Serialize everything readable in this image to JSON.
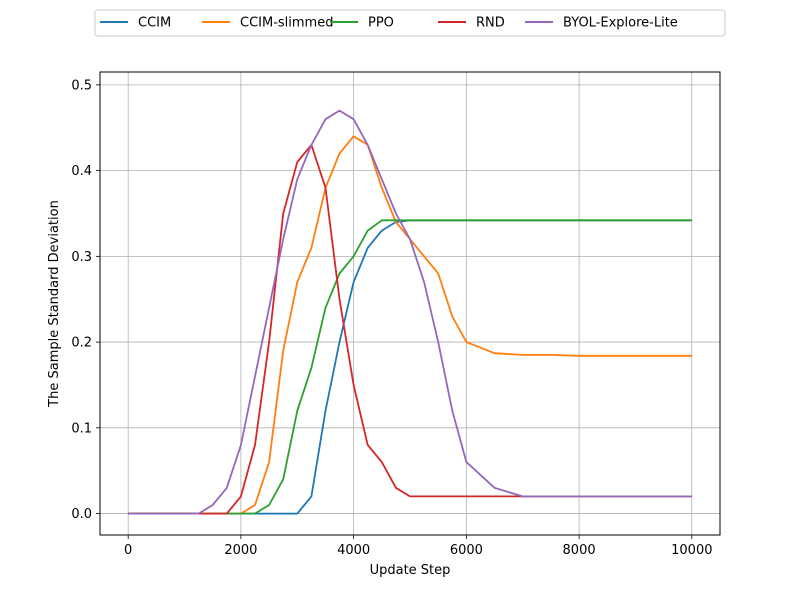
{
  "chart_data": {
    "type": "line",
    "title": "",
    "xlabel": "Update Step",
    "ylabel": "The Sample Standard Deviation",
    "xlim": [
      -500,
      10500
    ],
    "ylim": [
      -0.025,
      0.515
    ],
    "xticks": [
      0,
      2000,
      4000,
      6000,
      8000,
      10000
    ],
    "xtick_labels": [
      "0",
      "2000",
      "4000",
      "6000",
      "8000",
      "10000"
    ],
    "yticks": [
      0.0,
      0.1,
      0.2,
      0.3,
      0.4,
      0.5
    ],
    "ytick_labels": [
      "0.0",
      "0.1",
      "0.2",
      "0.3",
      "0.4",
      "0.5"
    ],
    "grid": true,
    "legend_position": "top-center outside",
    "series": [
      {
        "name": "CCIM",
        "color": "#1f77b4",
        "x": [
          0,
          250,
          500,
          750,
          1000,
          1250,
          1500,
          1750,
          2000,
          2250,
          2500,
          2750,
          3000,
          3250,
          3500,
          3750,
          4000,
          4250,
          4500,
          4750,
          5000,
          5500,
          6000,
          6500,
          7000,
          7500,
          8000,
          8500,
          9000,
          9500,
          10000
        ],
        "y": [
          0.0,
          0.0,
          0.0,
          0.0,
          0.0,
          0.0,
          0.0,
          0.0,
          0.0,
          0.0,
          0.0,
          0.0,
          0.0,
          0.02,
          0.12,
          0.2,
          0.27,
          0.31,
          0.33,
          0.34,
          0.342,
          0.342,
          0.342,
          0.342,
          0.342,
          0.342,
          0.342,
          0.342,
          0.342,
          0.342,
          0.342
        ]
      },
      {
        "name": "CCIM-slimmed",
        "color": "#ff7f0e",
        "x": [
          0,
          250,
          500,
          750,
          1000,
          1250,
          1500,
          1750,
          2000,
          2250,
          2500,
          2750,
          3000,
          3250,
          3500,
          3750,
          4000,
          4250,
          4500,
          4750,
          5000,
          5250,
          5500,
          5750,
          6000,
          6500,
          7000,
          7500,
          8000,
          8500,
          9000,
          9500,
          10000
        ],
        "y": [
          0.0,
          0.0,
          0.0,
          0.0,
          0.0,
          0.0,
          0.0,
          0.0,
          0.0,
          0.01,
          0.06,
          0.19,
          0.27,
          0.31,
          0.38,
          0.42,
          0.44,
          0.43,
          0.38,
          0.34,
          0.32,
          0.3,
          0.28,
          0.23,
          0.2,
          0.187,
          0.185,
          0.185,
          0.184,
          0.184,
          0.184,
          0.184,
          0.184
        ]
      },
      {
        "name": "PPO",
        "color": "#2ca02c",
        "x": [
          0,
          250,
          500,
          750,
          1000,
          1250,
          1500,
          1750,
          2000,
          2250,
          2500,
          2750,
          3000,
          3250,
          3500,
          3750,
          4000,
          4250,
          4500,
          4750,
          5000,
          5500,
          6000,
          6500,
          7000,
          7500,
          8000,
          8500,
          9000,
          9500,
          10000
        ],
        "y": [
          0.0,
          0.0,
          0.0,
          0.0,
          0.0,
          0.0,
          0.0,
          0.0,
          0.0,
          0.0,
          0.01,
          0.04,
          0.12,
          0.17,
          0.24,
          0.28,
          0.3,
          0.33,
          0.342,
          0.342,
          0.342,
          0.342,
          0.342,
          0.342,
          0.342,
          0.342,
          0.342,
          0.342,
          0.342,
          0.342,
          0.342
        ]
      },
      {
        "name": "RND",
        "color": "#d62728",
        "x": [
          0,
          250,
          500,
          750,
          1000,
          1250,
          1500,
          1750,
          2000,
          2250,
          2500,
          2750,
          3000,
          3250,
          3500,
          3750,
          4000,
          4250,
          4500,
          4750,
          5000,
          5500,
          6000,
          6500,
          7000,
          7500,
          8000,
          8500,
          9000,
          9500,
          10000
        ],
        "y": [
          0.0,
          0.0,
          0.0,
          0.0,
          0.0,
          0.0,
          0.0,
          0.0,
          0.02,
          0.08,
          0.2,
          0.35,
          0.41,
          0.43,
          0.38,
          0.25,
          0.15,
          0.08,
          0.06,
          0.03,
          0.02,
          0.02,
          0.02,
          0.02,
          0.02,
          0.02,
          0.02,
          0.02,
          0.02,
          0.02,
          0.02
        ]
      },
      {
        "name": "BYOL-Explore-Lite",
        "color": "#9467bd",
        "x": [
          0,
          250,
          500,
          750,
          1000,
          1250,
          1500,
          1750,
          2000,
          2250,
          2500,
          2750,
          3000,
          3250,
          3500,
          3750,
          4000,
          4250,
          4500,
          4750,
          5000,
          5250,
          5500,
          5750,
          6000,
          6500,
          7000,
          7500,
          8000,
          8500,
          9000,
          9500,
          10000
        ],
        "y": [
          0.0,
          0.0,
          0.0,
          0.0,
          0.0,
          0.0,
          0.01,
          0.03,
          0.08,
          0.16,
          0.24,
          0.32,
          0.39,
          0.43,
          0.46,
          0.47,
          0.46,
          0.43,
          0.39,
          0.35,
          0.32,
          0.27,
          0.2,
          0.12,
          0.06,
          0.03,
          0.02,
          0.02,
          0.02,
          0.02,
          0.02,
          0.02,
          0.02
        ]
      }
    ]
  }
}
